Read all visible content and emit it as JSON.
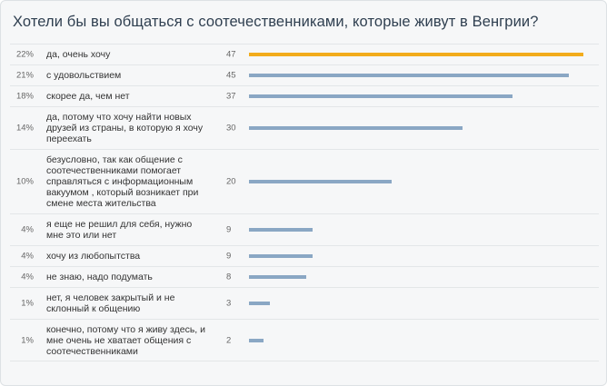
{
  "poll": {
    "title": "Хотели бы вы общаться с соотечественниками, которые живут в Венгрии?",
    "colors": {
      "bar": "#8aa7c4",
      "leader_bar": "#f2ac1c"
    },
    "max_votes": 47,
    "options": [
      {
        "percent": "22%",
        "label": "да, очень хочу",
        "votes": 47
      },
      {
        "percent": "21%",
        "label": "с удовольствием",
        "votes": 45
      },
      {
        "percent": "18%",
        "label": "скорее да, чем нет",
        "votes": 37
      },
      {
        "percent": "14%",
        "label": "да, потому что хочу найти новых друзей из страны, в которую я хочу переехать",
        "votes": 30
      },
      {
        "percent": "10%",
        "label": "безусловно, так как общение с соотечественниками помогает справляться с информационным вакуумом , который возникает при смене места жительства",
        "votes": 20
      },
      {
        "percent": "4%",
        "label": "я еще не решил для себя, нужно мне это или нет",
        "votes": 9
      },
      {
        "percent": "4%",
        "label": "хочу из любопытства",
        "votes": 9
      },
      {
        "percent": "4%",
        "label": "не знаю, надо подумать",
        "votes": 8
      },
      {
        "percent": "1%",
        "label": "нет, я человек закрытый и не склонный к общению",
        "votes": 3
      },
      {
        "percent": "1%",
        "label": "конечно, потому что я живу здесь, и мне очень не хватает общения с соотечественниками",
        "votes": 2
      }
    ]
  }
}
